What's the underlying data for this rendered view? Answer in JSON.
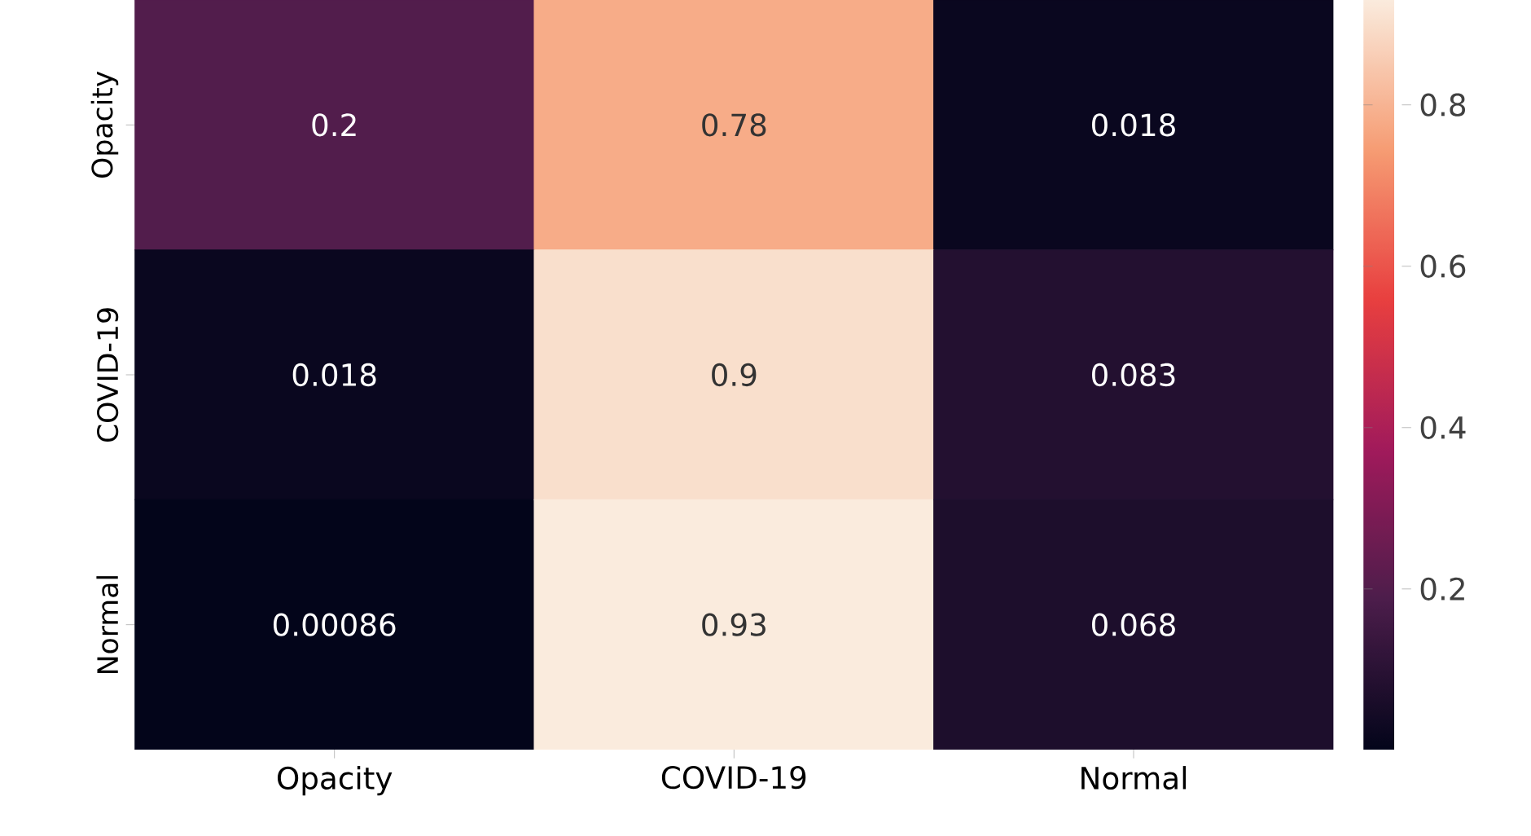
{
  "chart_data": {
    "type": "heatmap",
    "categories": [
      "Opacity",
      "COVID-19",
      "Normal"
    ],
    "y_categories": [
      "Opacity",
      "COVID-19",
      "Normal"
    ],
    "cells": [
      [
        0.2,
        0.78,
        0.018
      ],
      [
        0.018,
        0.9,
        0.083
      ],
      [
        0.00086,
        0.93,
        0.068
      ]
    ],
    "cell_labels": [
      [
        "0.2",
        "0.78",
        "0.018"
      ],
      [
        "0.018",
        "0.9",
        "0.083"
      ],
      [
        "0.00086",
        "0.93",
        "0.068"
      ]
    ],
    "clim": [
      0.00086,
      0.93
    ],
    "cticks": [
      0.2,
      0.4,
      0.6,
      0.8
    ]
  }
}
